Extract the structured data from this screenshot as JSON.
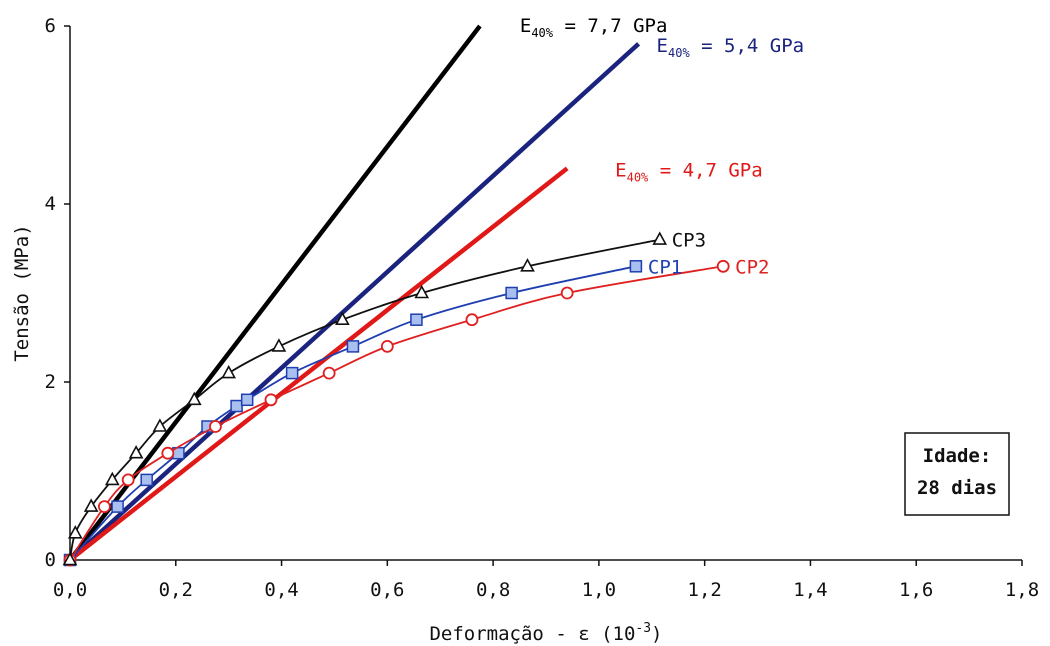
{
  "chart_data": {
    "type": "line",
    "xlabel": "Deformação - ε (10",
    "xlabel_sup": "-3",
    "xlabel_end": ")",
    "ylabel": "Tensão (MPa)",
    "xlim": [
      0,
      1.8
    ],
    "ylim": [
      0,
      6
    ],
    "x_ticks": [
      "0,0",
      "0,2",
      "0,4",
      "0,6",
      "0,8",
      "1,0",
      "1,2",
      "1,4",
      "1,6",
      "1,8"
    ],
    "y_ticks": [
      "0",
      "2",
      "4",
      "6"
    ],
    "grid": false,
    "series": [
      {
        "name": "CP1",
        "color": "#1f3fb0",
        "marker": "square",
        "x": [
          0,
          0.09,
          0.145,
          0.205,
          0.26,
          0.315,
          0.335,
          0.42,
          0.535,
          0.655,
          0.835,
          1.07
        ],
        "y": [
          0,
          0.6,
          0.9,
          1.2,
          1.5,
          1.73,
          1.8,
          2.1,
          2.4,
          2.7,
          3.0,
          3.3
        ]
      },
      {
        "name": "CP2",
        "color": "#e02020",
        "marker": "circle",
        "x": [
          0,
          0.065,
          0.11,
          0.185,
          0.275,
          0.38,
          0.49,
          0.6,
          0.76,
          0.94,
          1.235
        ],
        "y": [
          0,
          0.6,
          0.9,
          1.2,
          1.5,
          1.8,
          2.1,
          2.4,
          2.7,
          3.0,
          3.3
        ]
      },
      {
        "name": "CP3",
        "color": "#111111",
        "marker": "triangle",
        "x": [
          0,
          0.01,
          0.04,
          0.08,
          0.125,
          0.17,
          0.235,
          0.3,
          0.395,
          0.515,
          0.665,
          0.865,
          1.115
        ],
        "y": [
          0,
          0.3,
          0.6,
          0.9,
          1.2,
          1.5,
          1.8,
          2.1,
          2.4,
          2.7,
          3.0,
          3.3,
          3.6
        ]
      }
    ],
    "moduli": [
      {
        "label": "E",
        "sub": "40%",
        "value": " = 7,7 GPa",
        "color": "#000000",
        "x": [
          0,
          0.775
        ],
        "y": [
          0,
          6.0
        ]
      },
      {
        "label": "E",
        "sub": "40%",
        "value": " = 5,4 GPa",
        "color": "#1a237e",
        "x": [
          0,
          1.075
        ],
        "y": [
          0,
          5.8
        ]
      },
      {
        "label": "E",
        "sub": "40%",
        "value": " = 4,7 GPa",
        "color": "#e01818",
        "x": [
          0,
          0.94
        ],
        "y": [
          0,
          4.4
        ]
      }
    ],
    "annotation": {
      "lines": [
        "Idade:",
        "28 dias"
      ],
      "position": "right-middle"
    }
  }
}
